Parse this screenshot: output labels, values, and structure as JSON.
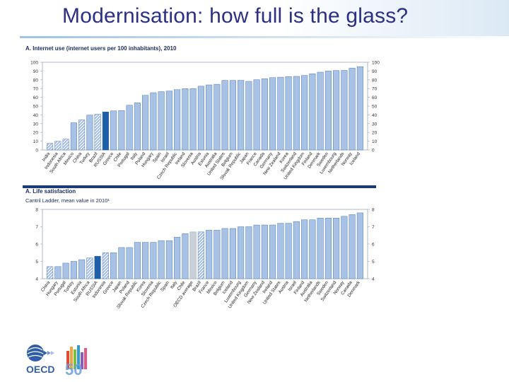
{
  "slide": {
    "title": "Modernisation: how full is the glass?"
  },
  "chart_data": [
    {
      "type": "bar",
      "title": "A. Internet use (internet users per 100 inhabitants), 2010",
      "ylim": [
        0,
        100
      ],
      "yticks": [
        0,
        10,
        20,
        30,
        40,
        50,
        60,
        70,
        80,
        90,
        100
      ],
      "grid": false,
      "categories": [
        "India",
        "Indonesia",
        "South Africa",
        "Mexico",
        "China",
        "Turkey",
        "Brazil",
        "RUSSIA",
        "Greece",
        "Chile",
        "Portugal",
        "Italy",
        "Poland",
        "Hungary",
        "Spain",
        "Israel",
        "Czech Republic",
        "Ireland",
        "Slovenia",
        "Austria",
        "Estonia",
        "Australia",
        "United States",
        "Belgium",
        "Slovak Republic",
        "Japan",
        "France",
        "Canada",
        "Germany",
        "New Zealand",
        "Korea",
        "Switzerland",
        "United Kingdom",
        "Finland",
        "Denmark",
        "Sweden",
        "Luxembourg",
        "Netherlands",
        "Norway",
        "Iceland"
      ],
      "values": [
        7.5,
        9.9,
        12.3,
        31,
        34.3,
        39.8,
        40.7,
        43.4,
        44.6,
        45,
        51,
        53.7,
        62.3,
        65.3,
        66.5,
        67.2,
        68.8,
        69.9,
        70,
        72.7,
        74.2,
        74.9,
        79.3,
        79.3,
        79.4,
        78.2,
        80.1,
        81.3,
        82.5,
        83,
        83.7,
        83.9,
        85,
        86.9,
        88.7,
        90,
        90.6,
        90.7,
        93.4,
        95
      ],
      "bar_styles": [
        "hatched",
        "hatched",
        "hatched",
        "solid",
        "hatched",
        "solid",
        "hatched",
        "highlight",
        "solid",
        "solid",
        "solid",
        "solid",
        "solid",
        "solid",
        "solid",
        "solid",
        "solid",
        "solid",
        "solid",
        "solid",
        "solid",
        "solid",
        "solid",
        "solid",
        "solid",
        "solid",
        "solid",
        "solid",
        "solid",
        "solid",
        "solid",
        "solid",
        "solid",
        "solid",
        "solid",
        "solid",
        "solid",
        "solid",
        "solid",
        "solid"
      ],
      "colors": {
        "bar": "#a7c2e4",
        "bar_edge": "#4e79b8",
        "highlight": "#1f5fa8",
        "hatch": "#5f86c2"
      }
    },
    {
      "type": "bar",
      "title": "A. Life satisfaction",
      "subtitle": "Cantril Ladder, mean value in 2010¹",
      "ylim": [
        4,
        8
      ],
      "yticks": [
        4,
        5,
        6,
        7,
        8
      ],
      "grid": false,
      "categories": [
        "China",
        "Hungary",
        "Portugal",
        "Turkey",
        "Estonia",
        "South Africa",
        "RUSSIA",
        "Indonesia",
        "Greece",
        "Japan",
        "Poland",
        "Slovak Republic",
        "Korea",
        "Slovenia",
        "Czech Republic",
        "Spain",
        "Italy",
        "Chile",
        "OECD average",
        "Brazil",
        "France",
        "Mexico",
        "Belgium",
        "Iceland",
        "Luxembourg",
        "United Kingdom",
        "Germany",
        "New Zealand",
        "Ireland",
        "United States",
        "Austria",
        "Israel",
        "Finland",
        "Australia",
        "Netherlands",
        "Sweden",
        "Switzerland",
        "Norway",
        "Canada",
        "Denmark"
      ],
      "values": [
        4.7,
        4.7,
        4.9,
        5.0,
        5.1,
        5.2,
        5.3,
        5.5,
        5.5,
        5.8,
        5.8,
        6.1,
        6.1,
        6.1,
        6.2,
        6.2,
        6.4,
        6.6,
        6.7,
        6.7,
        6.8,
        6.8,
        6.9,
        6.9,
        7.0,
        7.0,
        7.1,
        7.1,
        7.1,
        7.2,
        7.2,
        7.3,
        7.4,
        7.4,
        7.5,
        7.5,
        7.5,
        7.6,
        7.7,
        7.8
      ],
      "bar_styles": [
        "hatched",
        "solid",
        "solid",
        "solid",
        "solid",
        "hatched",
        "highlight",
        "hatched",
        "solid",
        "solid",
        "solid",
        "solid",
        "solid",
        "solid",
        "solid",
        "solid",
        "solid",
        "solid",
        "grey",
        "hatched",
        "solid",
        "solid",
        "solid",
        "solid",
        "solid",
        "solid",
        "solid",
        "solid",
        "solid",
        "solid",
        "solid",
        "solid",
        "solid",
        "solid",
        "solid",
        "solid",
        "solid",
        "solid",
        "solid",
        "solid"
      ],
      "colors": {
        "bar": "#a7c2e4",
        "bar_edge": "#4e79b8",
        "highlight": "#1f5fa8",
        "hatch": "#5f86c2",
        "grey": "#c9cfd8"
      }
    }
  ],
  "logo": {
    "text": "OECD",
    "number": "50"
  }
}
